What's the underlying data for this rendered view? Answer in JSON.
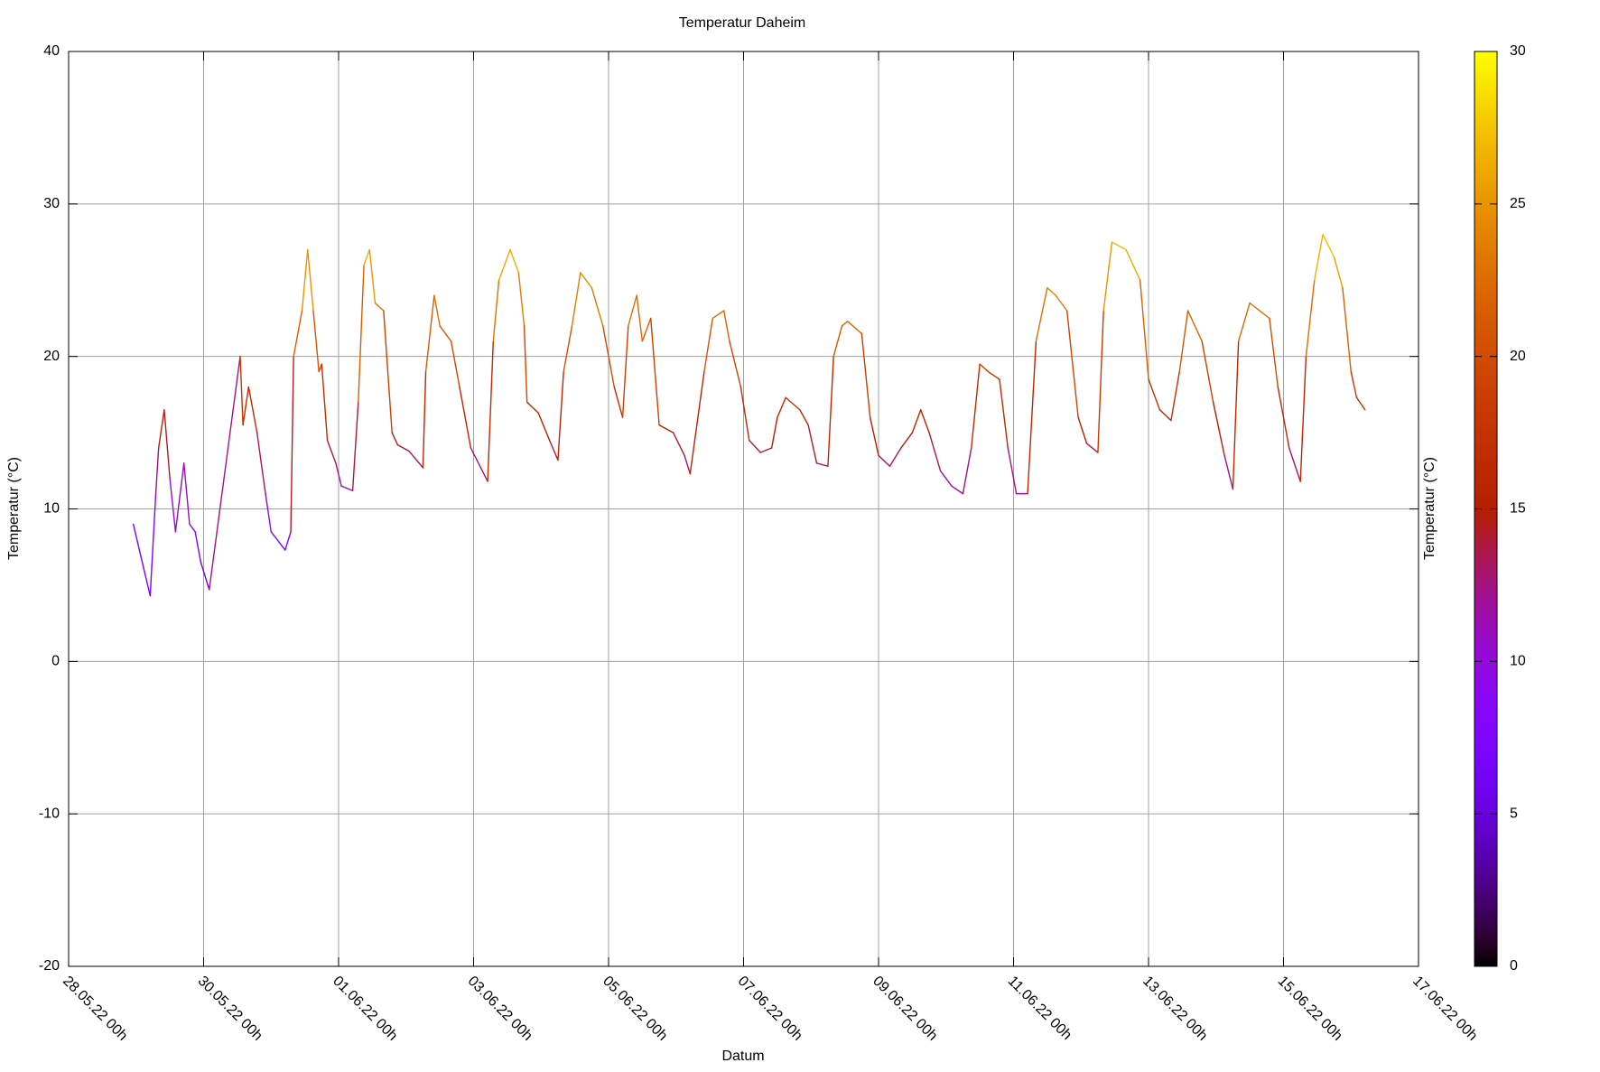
{
  "chart_data": {
    "type": "line",
    "title": "Temperatur Daheim",
    "xlabel": "Datum",
    "ylabel": "Temperatur (°C)",
    "x": [
      "28.05.22 23h",
      "29.05.22 05h",
      "29.05.22 07h",
      "29.05.22 08h",
      "29.05.22 10h",
      "29.05.22 12h",
      "29.05.22 14h",
      "29.05.22 17h",
      "29.05.22 19h",
      "29.05.22 21h",
      "29.05.22 23h",
      "30.05.22 02h",
      "30.05.22 13h",
      "30.05.22 14h",
      "30.05.22 16h",
      "30.05.22 19h",
      "30.05.22 22h",
      "31.05.22 00h",
      "31.05.22 05h",
      "31.05.22 07h",
      "31.05.22 08h",
      "31.05.22 11h",
      "31.05.22 13h",
      "31.05.22 15h",
      "31.05.22 17h",
      "31.05.22 18h",
      "31.05.22 20h",
      "31.05.22 23h",
      "01.06.22 01h",
      "01.06.22 05h",
      "01.06.22 07h",
      "01.06.22 09h",
      "01.06.22 11h",
      "01.06.22 13h",
      "01.06.22 16h",
      "01.06.22 19h",
      "01.06.22 21h",
      "02.06.22 01h",
      "02.06.22 06h",
      "02.06.22 07h",
      "02.06.22 10h",
      "02.06.22 12h",
      "02.06.22 16h",
      "02.06.22 19h",
      "02.06.22 23h",
      "03.06.22 05h",
      "03.06.22 07h",
      "03.06.22 09h",
      "03.06.22 13h",
      "03.06.22 16h",
      "03.06.22 18h",
      "03.06.22 19h",
      "03.06.22 23h",
      "04.06.22 03h",
      "04.06.22 06h",
      "04.06.22 08h",
      "04.06.22 11h",
      "04.06.22 14h",
      "04.06.22 18h",
      "04.06.22 22h",
      "05.06.22 02h",
      "05.06.22 05h",
      "05.06.22 07h",
      "05.06.22 10h",
      "05.06.22 12h",
      "05.06.22 15h",
      "05.06.22 18h",
      "05.06.22 23h",
      "06.06.22 03h",
      "06.06.22 05h",
      "06.06.22 10h",
      "06.06.22 13h",
      "06.06.22 17h",
      "06.06.22 19h",
      "06.06.22 23h",
      "07.06.22 02h",
      "07.06.22 06h",
      "07.06.22 10h",
      "07.06.22 12h",
      "07.06.22 15h",
      "07.06.22 20h",
      "07.06.22 23h",
      "08.06.22 02h",
      "08.06.22 06h",
      "08.06.22 08h",
      "08.06.22 11h",
      "08.06.22 13h",
      "08.06.22 18h",
      "08.06.22 21h",
      "09.06.22 00h",
      "09.06.22 04h",
      "09.06.22 08h",
      "09.06.22 12h",
      "09.06.22 15h",
      "09.06.22 18h",
      "09.06.22 22h",
      "10.06.22 02h",
      "10.06.22 06h",
      "10.06.22 09h",
      "10.06.22 12h",
      "10.06.22 15h",
      "10.06.22 19h",
      "10.06.22 22h",
      "11.06.22 01h",
      "11.06.22 05h",
      "11.06.22 08h",
      "11.06.22 12h",
      "11.06.22 15h",
      "11.06.22 19h",
      "11.06.22 23h",
      "12.06.22 02h",
      "12.06.22 06h",
      "12.06.22 08h",
      "12.06.22 11h",
      "12.06.22 16h",
      "12.06.22 21h",
      "13.06.22 00h",
      "13.06.22 04h",
      "13.06.22 08h",
      "13.06.22 11h",
      "13.06.22 14h",
      "13.06.22 19h",
      "13.06.22 23h",
      "14.06.22 03h",
      "14.06.22 06h",
      "14.06.22 08h",
      "14.06.22 12h",
      "14.06.22 19h",
      "14.06.22 22h",
      "15.06.22 02h",
      "15.06.22 06h",
      "15.06.22 08h",
      "15.06.22 11h",
      "15.06.22 14h",
      "15.06.22 18h",
      "15.06.22 21h",
      "16.06.22 00h",
      "16.06.22 02h",
      "16.06.22 05h"
    ],
    "values": [
      9,
      4.3,
      11,
      14,
      16.5,
      12,
      8.5,
      13,
      9,
      8.5,
      6.5,
      4.7,
      20,
      15.5,
      18,
      15,
      11,
      8.5,
      7.3,
      8.5,
      20,
      23,
      27,
      23,
      19,
      19.5,
      14.5,
      13,
      11.5,
      11.2,
      17,
      26,
      27,
      23.5,
      23,
      15,
      14.2,
      13.8,
      12.7,
      19,
      24,
      22,
      21,
      18,
      14,
      11.8,
      21,
      25,
      27,
      25.5,
      22,
      17,
      16.3,
      14.5,
      13.2,
      19,
      22,
      25.5,
      24.5,
      22,
      18,
      16,
      22,
      24,
      21,
      22.5,
      15.5,
      15,
      13.5,
      12.3,
      19,
      22.5,
      23,
      21,
      18,
      14.5,
      13.7,
      14,
      16,
      17.3,
      16.5,
      15.5,
      13,
      12.8,
      20,
      22,
      22.3,
      21.5,
      16,
      13.5,
      12.8,
      14,
      15,
      16.5,
      15,
      12.5,
      11.5,
      11,
      14,
      19.5,
      19,
      18.5,
      14,
      11,
      11,
      21,
      24.5,
      24,
      23,
      16,
      14.3,
      13.7,
      23,
      27.5,
      27,
      25,
      18.5,
      16.5,
      15.8,
      19,
      23,
      21,
      17,
      13.5,
      11.3,
      21,
      23.5,
      22.5,
      18,
      14,
      11.8,
      20,
      25,
      28,
      26.5,
      24.5,
      19,
      17.3,
      16.5
    ],
    "xlim": [
      "28.05.22 00h",
      "17.06.22 00h"
    ],
    "xticks": [
      "28.05.22 00h",
      "30.05.22 00h",
      "01.06.22 00h",
      "03.06.22 00h",
      "05.06.22 00h",
      "07.06.22 00h",
      "09.06.22 00h",
      "11.06.22 00h",
      "13.06.22 00h",
      "15.06.22 00h",
      "17.06.22 00h"
    ],
    "ylim": [
      -20,
      40
    ],
    "yticks": [
      -20,
      -10,
      0,
      10,
      20,
      30,
      40
    ],
    "grid": true,
    "colorbar": {
      "lim": [
        0,
        30
      ],
      "ticks": [
        0,
        5,
        10,
        15,
        20,
        25,
        30
      ],
      "label": "Temperatur (°C)"
    }
  }
}
